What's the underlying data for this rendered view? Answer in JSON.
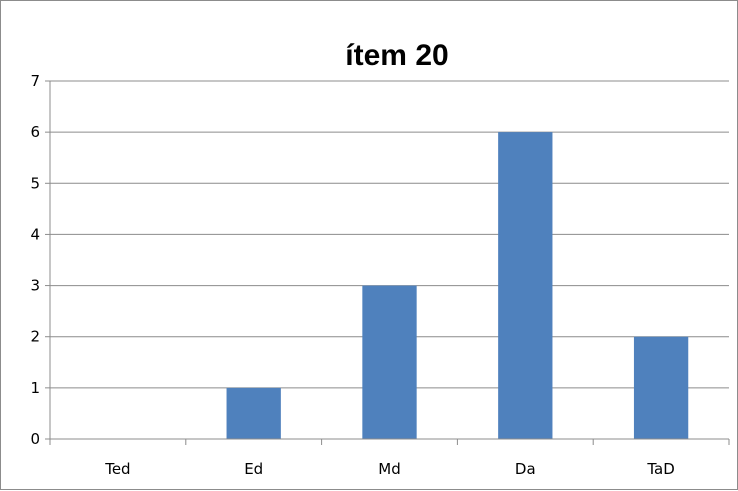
{
  "chart_data": {
    "type": "bar",
    "title": "ítem 20",
    "xlabel": "",
    "ylabel": "",
    "categories": [
      "Ted",
      "Ed",
      "Md",
      "Da",
      "TaD"
    ],
    "values": [
      0,
      1,
      3,
      6,
      2
    ],
    "ylim": [
      0,
      7
    ],
    "yticks": [
      "0",
      "1",
      "2",
      "3",
      "4",
      "5",
      "6",
      "7"
    ],
    "grid": true,
    "legend": "none",
    "colors": {
      "bar": "#4f81bd",
      "grid": "#8c8c8c",
      "axis": "#8c8c8c",
      "frame": "#8c8c8c"
    }
  }
}
